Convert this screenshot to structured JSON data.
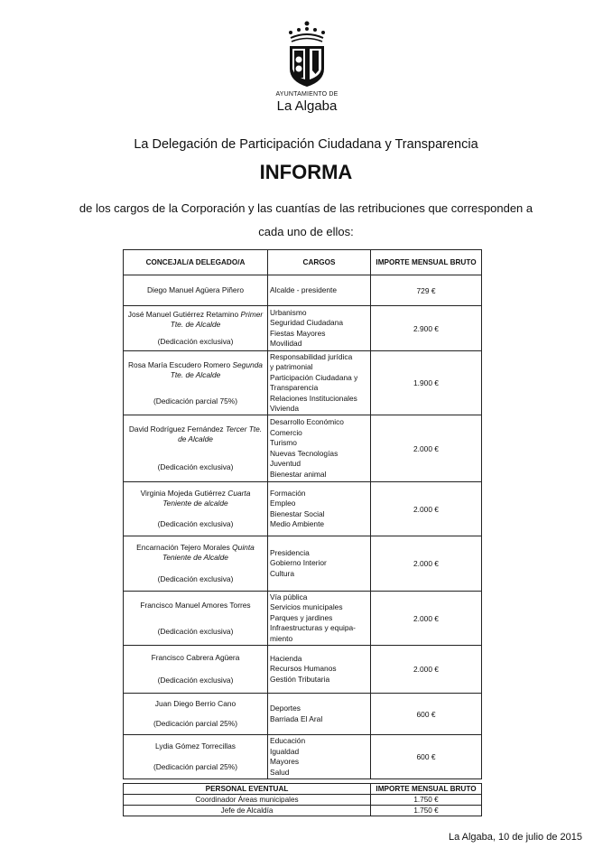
{
  "logo": {
    "line1": "AYUNTAMIENTO DE",
    "line2": "La Algaba"
  },
  "heading": "La Delegación de Participación Ciudadana y Transparencia",
  "title": "INFORMA",
  "intro_line1": "de los cargos de la Corporación y las cuantías de las retribuciones que corresponden a",
  "intro_line2": "cada uno de ellos:",
  "table": {
    "headers": [
      "CONCEJAL/A DELEGADO/A",
      "CARGOS",
      "IMPORTE MENSUAL BRUTO"
    ],
    "rows": [
      {
        "name": "Diego Manuel Agüera Piñero",
        "role": "",
        "dedication": "",
        "cargos": [
          "Alcalde - presidente"
        ],
        "amount": "729 €"
      },
      {
        "name": "José Manuel Gutiérrez Retamino",
        "role": "Primer Tte. de Alcalde",
        "dedication": "(Dedicación exclusiva)",
        "cargos": [
          "Urbanismo",
          "Seguridad Ciudadana",
          "Fiestas Mayores",
          "Movilidad"
        ],
        "amount": "2.900 €"
      },
      {
        "name": "Rosa María Escudero Romero",
        "role": "Segunda Tte. de Alcalde",
        "dedication": "(Dedicación parcial 75%)",
        "cargos": [
          "Responsabilidad jurídica",
          "y patrimonial",
          "Participación Ciudadana y",
          "Transparencia",
          "Relaciones Institucionales",
          "Vivienda"
        ],
        "amount": "1.900 €"
      },
      {
        "name": "David Rodríguez Fernández",
        "role": "Tercer Tte. de Alcalde",
        "dedication": "(Dedicación exclusiva)",
        "cargos": [
          "Desarrollo Económico",
          "Comercio",
          "Turismo",
          "Nuevas Tecnologías",
          "Juventud",
          "Bienestar animal"
        ],
        "amount": "2.000 €"
      },
      {
        "name": "Virginia Mojeda Gutiérrez",
        "role": "Cuarta Teniente de alcalde",
        "dedication": "(Dedicación exclusiva)",
        "cargos": [
          "Formación",
          "Empleo",
          "Bienestar Social",
          "Medio Ambiente"
        ],
        "amount": "2.000 €"
      },
      {
        "name": "Encarnación Tejero Morales",
        "role": "Quinta Teniente de Alcalde",
        "dedication": "(Dedicación exclusiva)",
        "cargos": [
          "Presidencia",
          "Gobierno Interior",
          "Cultura"
        ],
        "amount": "2.000 €"
      },
      {
        "name": "Francisco Manuel Amores Torres",
        "role": "",
        "dedication": "(Dedicación exclusiva)",
        "cargos": [
          "Vía pública",
          "Servicios municipales",
          "Parques y jardines",
          "Infraestructuras y equipa-",
          "miento"
        ],
        "amount": "2.000 €"
      },
      {
        "name": "Francisco Cabrera Agüera",
        "role": "",
        "dedication": "(Dedicación exclusiva)",
        "cargos": [
          "Hacienda",
          "Recursos Humanos",
          "Gestión Tributaria"
        ],
        "amount": "2.000 €"
      },
      {
        "name": "Juan Diego Berrio Cano",
        "role": "",
        "dedication": "(Dedicación parcial 25%)",
        "cargos": [
          "Deportes",
          "Barriada El Aral"
        ],
        "amount": "600 €"
      },
      {
        "name": "Lydia Gómez Torrecillas",
        "role": "",
        "dedication": "(Dedicación parcial 25%)",
        "cargos": [
          "Educación",
          "Igualdad",
          "Mayores",
          "Salud"
        ],
        "amount": "600 €"
      }
    ]
  },
  "eventual": {
    "headers": [
      "PERSONAL EVENTUAL",
      "IMPORTE MENSUAL BRUTO"
    ],
    "rows": [
      {
        "position": "Coordinador Áreas municipales",
        "amount": "1.750 €"
      },
      {
        "position": "Jefe de Alcaldía",
        "amount": "1.750 €"
      }
    ]
  },
  "date": "La Algaba, 10 de julio de 2015"
}
